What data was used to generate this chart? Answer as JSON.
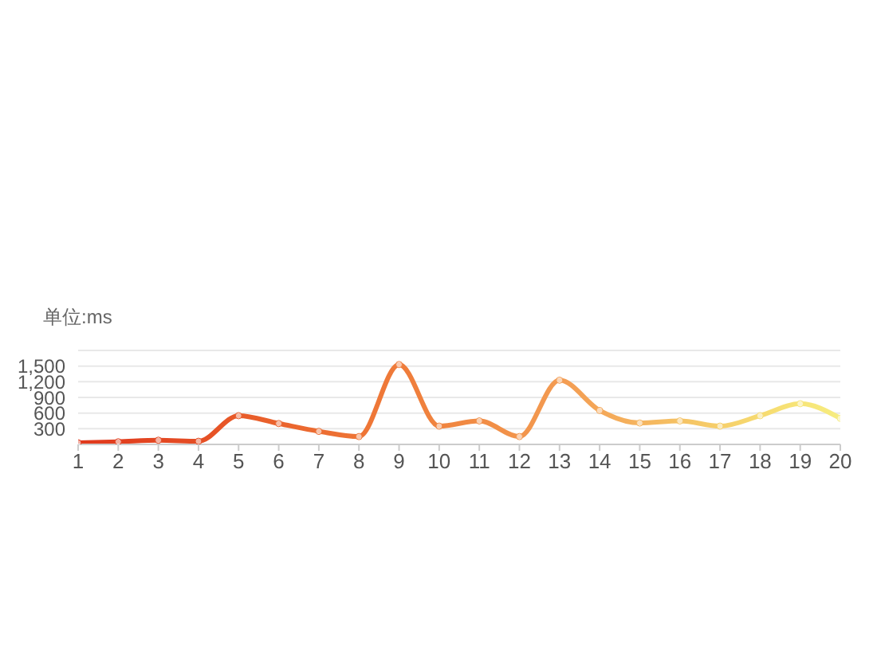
{
  "chart_data": {
    "type": "line",
    "ylabel": "单位:ms",
    "x": [
      1,
      2,
      3,
      4,
      5,
      6,
      7,
      8,
      9,
      10,
      11,
      12,
      13,
      14,
      15,
      16,
      17,
      18,
      19,
      20
    ],
    "values": [
      30,
      50,
      80,
      60,
      550,
      400,
      250,
      150,
      1530,
      350,
      450,
      150,
      1230,
      650,
      410,
      450,
      350,
      550,
      780,
      500
    ],
    "colors": [
      "#e0381c",
      "#e23f1f",
      "#e34722",
      "#e54e25",
      "#e85a28",
      "#ea632d",
      "#ec6c31",
      "#ee7435",
      "#ef7b3a",
      "#f0843f",
      "#f18c45",
      "#f2944b",
      "#f39b52",
      "#f4a758",
      "#f5b45e",
      "#f5c264",
      "#f6cf6a",
      "#f6da70",
      "#f7e577",
      "#f6ec80"
    ],
    "xlim": [
      1,
      20
    ],
    "xticks": [
      1,
      2,
      3,
      4,
      5,
      6,
      7,
      8,
      9,
      10,
      11,
      12,
      13,
      14,
      15,
      16,
      17,
      18,
      19,
      20
    ],
    "ylim": [
      0,
      1800
    ],
    "yticks": [
      {
        "value": 0,
        "label": null
      },
      300,
      600,
      900,
      {
        "value": 1200,
        "label": "1,200"
      },
      {
        "value": 1500,
        "label": "1,500"
      },
      {
        "value": 1800,
        "label": null
      }
    ],
    "grid": "y",
    "marker": "circle"
  }
}
